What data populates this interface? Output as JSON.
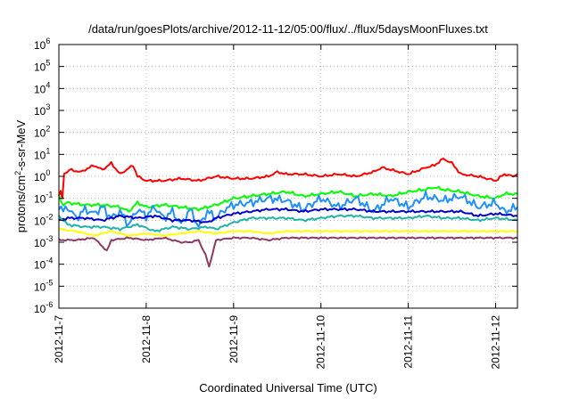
{
  "chart_data": {
    "type": "line",
    "title": "/data/run/goesPlots/archive/2012-11-12/05:00/flux/../flux/5daysMoonFluxes.txt",
    "xlabel": "Coordinated Universal Time (UTC)",
    "ylabel": {
      "prefix": "protons/cm",
      "sup": "2",
      "suffix": "-s-sr-MeV"
    },
    "y_scale": "log",
    "ylim_exp": [
      -6,
      6
    ],
    "y_ticks": [
      {
        "base": "10",
        "exp": "-6"
      },
      {
        "base": "10",
        "exp": "-5"
      },
      {
        "base": "10",
        "exp": "-4"
      },
      {
        "base": "10",
        "exp": "-3"
      },
      {
        "base": "10",
        "exp": "-2"
      },
      {
        "base": "10",
        "exp": "-1"
      },
      {
        "base": "10",
        "exp": "0"
      },
      {
        "base": "10",
        "exp": "1"
      },
      {
        "base": "10",
        "exp": "2"
      },
      {
        "base": "10",
        "exp": "3"
      },
      {
        "base": "10",
        "exp": "4"
      },
      {
        "base": "10",
        "exp": "5"
      },
      {
        "base": "10",
        "exp": "6"
      }
    ],
    "xlim": [
      "2012-11-07",
      "2012-11-12T06:00"
    ],
    "x_ticks": [
      "2012-11-7",
      "2012-11-8",
      "2012-11-9",
      "2012-11-10",
      "2012-11-11",
      "2012-11-12"
    ],
    "grid": true,
    "series": [
      {
        "color": "#ff0000",
        "values": [
          [
            0,
            -0.9
          ],
          [
            0.02,
            -0.7
          ],
          [
            0.04,
            -1.0
          ],
          [
            0.06,
            0.1
          ],
          [
            0.12,
            0.3
          ],
          [
            0.25,
            0.2
          ],
          [
            0.4,
            0.5
          ],
          [
            0.5,
            0.3
          ],
          [
            0.6,
            0.6
          ],
          [
            0.7,
            0.1
          ],
          [
            0.85,
            0.5
          ],
          [
            0.9,
            0.0
          ],
          [
            1.0,
            -0.2
          ],
          [
            1.2,
            -0.2
          ],
          [
            1.4,
            -0.1
          ],
          [
            1.6,
            -0.2
          ],
          [
            1.7,
            -0.1
          ],
          [
            1.8,
            0.0
          ],
          [
            2.0,
            -0.1
          ],
          [
            2.2,
            -0.1
          ],
          [
            2.4,
            0.0
          ],
          [
            2.5,
            0.2
          ],
          [
            2.6,
            0.1
          ],
          [
            2.8,
            0.1
          ],
          [
            3.0,
            0.0
          ],
          [
            3.2,
            0.1
          ],
          [
            3.4,
            0.0
          ],
          [
            3.6,
            0.2
          ],
          [
            3.7,
            0.4
          ],
          [
            3.8,
            0.3
          ],
          [
            4.0,
            0.1
          ],
          [
            4.2,
            0.4
          ],
          [
            4.3,
            0.5
          ],
          [
            4.4,
            0.8
          ],
          [
            4.5,
            0.6
          ],
          [
            4.6,
            0.1
          ],
          [
            4.8,
            0.0
          ],
          [
            5.0,
            -0.2
          ],
          [
            5.1,
            0.1
          ],
          [
            5.2,
            0.0
          ],
          [
            5.25,
            0.1
          ]
        ]
      },
      {
        "color": "#00ff00",
        "values": [
          [
            0,
            -0.9
          ],
          [
            0.05,
            -1.3
          ],
          [
            0.1,
            -1.2
          ],
          [
            0.3,
            -1.3
          ],
          [
            0.5,
            -1.3
          ],
          [
            0.7,
            -1.4
          ],
          [
            0.8,
            -1.6
          ],
          [
            0.9,
            -1.2
          ],
          [
            1.0,
            -1.4
          ],
          [
            1.2,
            -1.3
          ],
          [
            1.4,
            -1.4
          ],
          [
            1.6,
            -1.5
          ],
          [
            1.8,
            -1.3
          ],
          [
            2.0,
            -1.0
          ],
          [
            2.2,
            -0.9
          ],
          [
            2.4,
            -0.8
          ],
          [
            2.6,
            -0.7
          ],
          [
            2.8,
            -0.9
          ],
          [
            3.0,
            -0.8
          ],
          [
            3.2,
            -0.7
          ],
          [
            3.4,
            -0.9
          ],
          [
            3.6,
            -0.8
          ],
          [
            3.8,
            -0.9
          ],
          [
            4.0,
            -0.7
          ],
          [
            4.2,
            -0.6
          ],
          [
            4.3,
            -0.5
          ],
          [
            4.4,
            -0.6
          ],
          [
            4.6,
            -0.7
          ],
          [
            4.8,
            -0.9
          ],
          [
            5.0,
            -1.0
          ],
          [
            5.1,
            -0.8
          ],
          [
            5.25,
            -0.8
          ]
        ]
      },
      {
        "color": "#1e90ff",
        "values": [
          [
            0,
            -1.3
          ],
          [
            0.05,
            -1.6
          ],
          [
            0.1,
            -1.4
          ],
          [
            0.2,
            -1.9
          ],
          [
            0.3,
            -1.5
          ],
          [
            0.4,
            -1.7
          ],
          [
            0.5,
            -1.4
          ],
          [
            0.6,
            -1.9
          ],
          [
            0.7,
            -1.6
          ],
          [
            0.8,
            -2.2
          ],
          [
            0.9,
            -1.5
          ],
          [
            1.0,
            -1.8
          ],
          [
            1.1,
            -1.4
          ],
          [
            1.2,
            -1.9
          ],
          [
            1.3,
            -1.6
          ],
          [
            1.4,
            -2.2
          ],
          [
            1.5,
            -1.5
          ],
          [
            1.6,
            -2.3
          ],
          [
            1.7,
            -1.6
          ],
          [
            1.8,
            -1.9
          ],
          [
            1.9,
            -1.5
          ],
          [
            2.0,
            -1.3
          ],
          [
            2.2,
            -1.2
          ],
          [
            2.4,
            -1.0
          ],
          [
            2.6,
            -1.1
          ],
          [
            2.8,
            -1.5
          ],
          [
            3.0,
            -1.0
          ],
          [
            3.2,
            -1.4
          ],
          [
            3.4,
            -1.0
          ],
          [
            3.6,
            -1.6
          ],
          [
            3.8,
            -1.0
          ],
          [
            4.0,
            -1.4
          ],
          [
            4.2,
            -0.9
          ],
          [
            4.4,
            -1.1
          ],
          [
            4.6,
            -0.9
          ],
          [
            4.8,
            -1.4
          ],
          [
            5.0,
            -1.2
          ],
          [
            5.1,
            -1.6
          ],
          [
            5.25,
            -1.4
          ]
        ]
      },
      {
        "color": "#0000cd",
        "values": [
          [
            0,
            -2.0
          ],
          [
            0.1,
            -1.9
          ],
          [
            0.3,
            -1.9
          ],
          [
            0.5,
            -2.0
          ],
          [
            0.7,
            -1.8
          ],
          [
            0.9,
            -1.9
          ],
          [
            1.1,
            -1.8
          ],
          [
            1.3,
            -2.0
          ],
          [
            1.5,
            -2.0
          ],
          [
            1.7,
            -2.1
          ],
          [
            1.8,
            -1.9
          ],
          [
            2.0,
            -1.7
          ],
          [
            2.2,
            -1.6
          ],
          [
            2.4,
            -1.5
          ],
          [
            2.6,
            -1.5
          ],
          [
            2.8,
            -1.6
          ],
          [
            3.0,
            -1.5
          ],
          [
            3.2,
            -1.5
          ],
          [
            3.4,
            -1.5
          ],
          [
            3.6,
            -1.6
          ],
          [
            3.8,
            -1.6
          ],
          [
            4.0,
            -1.6
          ],
          [
            4.2,
            -1.6
          ],
          [
            4.4,
            -1.6
          ],
          [
            4.6,
            -1.6
          ],
          [
            4.8,
            -1.8
          ],
          [
            5.0,
            -1.7
          ],
          [
            5.25,
            -1.8
          ]
        ]
      },
      {
        "color": "#20b2aa",
        "values": [
          [
            0,
            -1.8
          ],
          [
            0.1,
            -2.2
          ],
          [
            0.3,
            -2.3
          ],
          [
            0.5,
            -2.3
          ],
          [
            0.7,
            -2.4
          ],
          [
            0.9,
            -2.2
          ],
          [
            1.1,
            -2.5
          ],
          [
            1.3,
            -2.3
          ],
          [
            1.5,
            -2.4
          ],
          [
            1.7,
            -2.3
          ],
          [
            1.8,
            -2.4
          ],
          [
            2.0,
            -2.1
          ],
          [
            2.2,
            -1.9
          ],
          [
            2.4,
            -1.9
          ],
          [
            2.6,
            -1.9
          ],
          [
            2.8,
            -2.0
          ],
          [
            3.0,
            -1.9
          ],
          [
            3.2,
            -1.8
          ],
          [
            3.4,
            -1.8
          ],
          [
            3.6,
            -1.9
          ],
          [
            3.8,
            -1.9
          ],
          [
            4.0,
            -1.9
          ],
          [
            4.2,
            -1.8
          ],
          [
            4.4,
            -1.9
          ],
          [
            4.6,
            -1.9
          ],
          [
            4.8,
            -2.0
          ],
          [
            5.0,
            -1.9
          ],
          [
            5.25,
            -2.0
          ]
        ]
      },
      {
        "color": "#ffff00",
        "values": [
          [
            0,
            -2.4
          ],
          [
            0.2,
            -2.5
          ],
          [
            0.4,
            -2.7
          ],
          [
            0.6,
            -2.5
          ],
          [
            0.8,
            -2.7
          ],
          [
            1.0,
            -2.6
          ],
          [
            1.2,
            -2.7
          ],
          [
            1.4,
            -2.6
          ],
          [
            1.6,
            -2.5
          ],
          [
            1.8,
            -2.6
          ],
          [
            2.0,
            -2.5
          ],
          [
            2.2,
            -2.5
          ],
          [
            2.4,
            -2.6
          ],
          [
            2.6,
            -2.5
          ],
          [
            2.8,
            -2.5
          ],
          [
            3.0,
            -2.5
          ],
          [
            3.2,
            -2.5
          ],
          [
            3.4,
            -2.5
          ],
          [
            3.6,
            -2.5
          ],
          [
            3.8,
            -2.5
          ],
          [
            4.0,
            -2.5
          ],
          [
            4.2,
            -2.5
          ],
          [
            4.4,
            -2.5
          ],
          [
            4.6,
            -2.5
          ],
          [
            4.8,
            -2.5
          ],
          [
            5.0,
            -2.5
          ],
          [
            5.25,
            -2.5
          ]
        ]
      },
      {
        "color": "#8b3a62",
        "values": [
          [
            0,
            -2.9
          ],
          [
            0.2,
            -2.9
          ],
          [
            0.4,
            -2.8
          ],
          [
            0.55,
            -3.4
          ],
          [
            0.6,
            -2.9
          ],
          [
            0.8,
            -2.8
          ],
          [
            1.0,
            -2.9
          ],
          [
            1.2,
            -2.8
          ],
          [
            1.4,
            -3.0
          ],
          [
            1.5,
            -3.0
          ],
          [
            1.6,
            -2.9
          ],
          [
            1.68,
            -3.6
          ],
          [
            1.72,
            -4.1
          ],
          [
            1.76,
            -3.5
          ],
          [
            1.8,
            -2.9
          ],
          [
            2.0,
            -2.8
          ],
          [
            2.2,
            -2.8
          ],
          [
            2.4,
            -2.9
          ],
          [
            2.6,
            -2.8
          ],
          [
            2.8,
            -2.8
          ],
          [
            3.0,
            -2.8
          ],
          [
            3.2,
            -2.8
          ],
          [
            3.4,
            -2.8
          ],
          [
            3.6,
            -2.8
          ],
          [
            3.8,
            -2.8
          ],
          [
            4.0,
            -2.8
          ],
          [
            4.2,
            -2.8
          ],
          [
            4.4,
            -2.8
          ],
          [
            4.6,
            -2.8
          ],
          [
            4.8,
            -2.8
          ],
          [
            5.0,
            -2.8
          ],
          [
            5.25,
            -2.8
          ]
        ]
      }
    ]
  }
}
